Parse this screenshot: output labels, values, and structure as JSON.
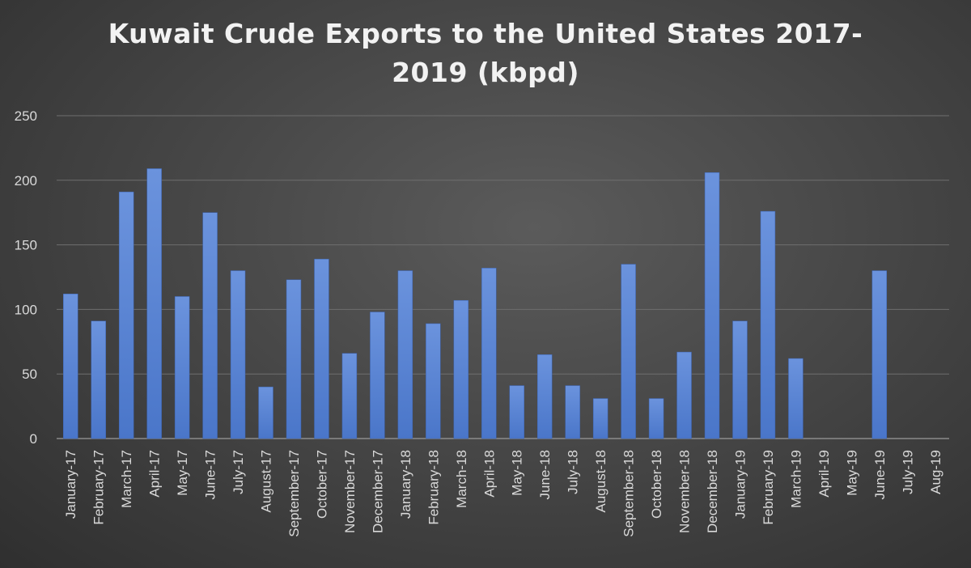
{
  "chart_data": {
    "type": "bar",
    "title_line1": "Kuwait Crude Exports to the United States 2017-",
    "title_line2": "2019 (kbpd)",
    "xlabel": "",
    "ylabel": "",
    "ylim": [
      0,
      250
    ],
    "yticks": [
      0,
      50,
      100,
      150,
      200,
      250
    ],
    "grid": true,
    "bar_color": "#4a76c9",
    "categories": [
      "January-17",
      "February-17",
      "March-17",
      "April-17",
      "May-17",
      "June-17",
      "July-17",
      "August-17",
      "September-17",
      "October-17",
      "November-17",
      "December-17",
      "January-18",
      "February-18",
      "March-18",
      "April-18",
      "May-18",
      "June-18",
      "July-18",
      "August-18",
      "September-18",
      "October-18",
      "November-18",
      "December-18",
      "January-19",
      "February-19",
      "March-19",
      "April-19",
      "May-19",
      "June-19",
      "July-19",
      "Aug-19"
    ],
    "values": [
      112,
      91,
      191,
      209,
      110,
      175,
      130,
      40,
      123,
      139,
      66,
      98,
      130,
      89,
      107,
      132,
      41,
      65,
      41,
      31,
      135,
      31,
      67,
      206,
      91,
      176,
      62,
      0,
      0,
      130,
      0,
      0
    ]
  }
}
